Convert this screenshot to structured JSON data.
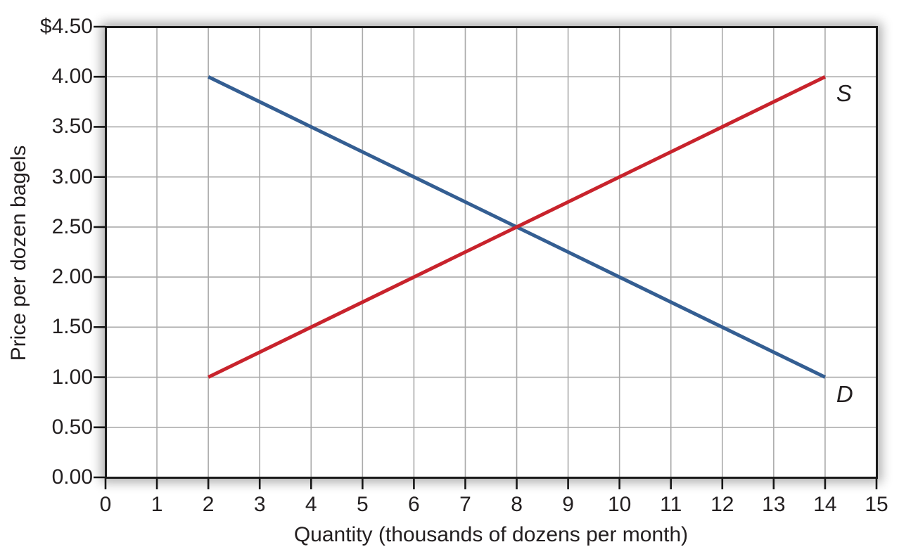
{
  "chart_data": {
    "type": "line",
    "title": "",
    "xlabel": "Quantity (thousands of dozens per month)",
    "ylabel": "Price per dozen bagels",
    "xlim": [
      0,
      15
    ],
    "ylim": [
      0,
      4.5
    ],
    "grid": true,
    "legend_position": "inline-end-labels",
    "axis_color": "#1A1A1A",
    "grid_color": "#AAAAAA",
    "x_ticks": [
      {
        "value": 0,
        "label": "0"
      },
      {
        "value": 1,
        "label": "1"
      },
      {
        "value": 2,
        "label": "2"
      },
      {
        "value": 3,
        "label": "3"
      },
      {
        "value": 4,
        "label": "4"
      },
      {
        "value": 5,
        "label": "5"
      },
      {
        "value": 6,
        "label": "6"
      },
      {
        "value": 7,
        "label": "7"
      },
      {
        "value": 8,
        "label": "8"
      },
      {
        "value": 9,
        "label": "9"
      },
      {
        "value": 10,
        "label": "10"
      },
      {
        "value": 11,
        "label": "11"
      },
      {
        "value": 12,
        "label": "12"
      },
      {
        "value": 13,
        "label": "13"
      },
      {
        "value": 14,
        "label": "14"
      },
      {
        "value": 15,
        "label": "15"
      }
    ],
    "y_ticks": [
      {
        "value": 4.5,
        "label": "$4.50"
      },
      {
        "value": 4.0,
        "label": "4.00"
      },
      {
        "value": 3.5,
        "label": "3.50"
      },
      {
        "value": 3.0,
        "label": "3.00"
      },
      {
        "value": 2.5,
        "label": "2.50"
      },
      {
        "value": 2.0,
        "label": "2.00"
      },
      {
        "value": 1.5,
        "label": "1.50"
      },
      {
        "value": 1.0,
        "label": "1.00"
      },
      {
        "value": 0.5,
        "label": "0.50"
      },
      {
        "value": 0.0,
        "label": "0.00"
      }
    ],
    "series": [
      {
        "name": "D",
        "color": "#345E92",
        "points": [
          [
            2,
            4.0
          ],
          [
            14,
            1.0
          ]
        ]
      },
      {
        "name": "S",
        "color": "#C8232C",
        "points": [
          [
            2,
            1.0
          ],
          [
            14,
            4.0
          ]
        ]
      }
    ]
  }
}
